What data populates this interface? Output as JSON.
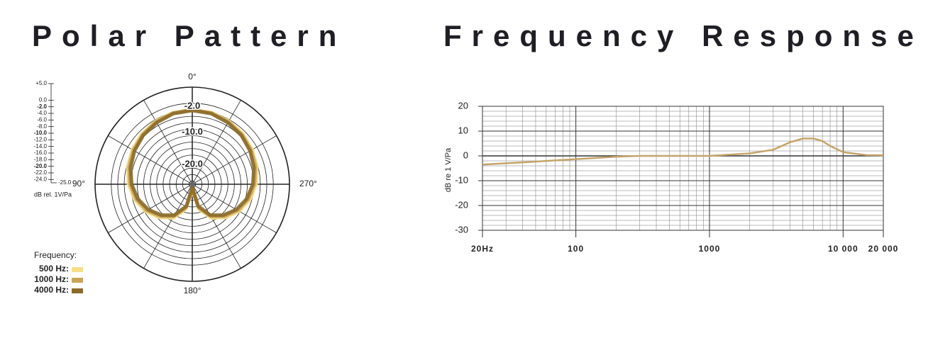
{
  "chart_data": [
    {
      "type": "polar",
      "title": "Polar Pattern",
      "rlim": [
        -25,
        5
      ],
      "rticks": [
        {
          "value": 5,
          "label": "+5.0"
        },
        {
          "value": 0,
          "label": "0.0"
        },
        {
          "value": -2,
          "label": "-2.0"
        },
        {
          "value": -4,
          "label": "-4.0"
        },
        {
          "value": -6,
          "label": "-6.0"
        },
        {
          "value": -8,
          "label": "-8.0"
        },
        {
          "value": -10,
          "label": "-10.0"
        },
        {
          "value": -12,
          "label": "-12.0"
        },
        {
          "value": -14,
          "label": "-14.0"
        },
        {
          "value": -16,
          "label": "-16.0"
        },
        {
          "value": -18,
          "label": "-18.0"
        },
        {
          "value": -20,
          "label": "-20.0"
        },
        {
          "value": -22,
          "label": "-22.0"
        },
        {
          "value": -24,
          "label": "-24.0"
        },
        {
          "value": -25,
          "label": "-25.0"
        }
      ],
      "r_label": "dB rel. 1V/Pa",
      "thetaticks": [
        0,
        30,
        60,
        90,
        120,
        150,
        180,
        210,
        240,
        270,
        300,
        330
      ],
      "angle_labels": [
        {
          "value": 0,
          "label": "0°"
        },
        {
          "value": 90,
          "label": "90°"
        },
        {
          "value": 180,
          "label": "180°"
        },
        {
          "value": 270,
          "label": "270°"
        }
      ],
      "annotations": [
        {
          "r": -2,
          "label": "-2.0"
        },
        {
          "r": -10,
          "label": "-10.0"
        },
        {
          "r": -20,
          "label": "-20.0"
        }
      ],
      "legend_title": "Frequency:",
      "theta": [
        0,
        15,
        30,
        45,
        60,
        75,
        90,
        105,
        120,
        135,
        150,
        165,
        180,
        195,
        210,
        225,
        240,
        255,
        270,
        285,
        300,
        315,
        330,
        345
      ],
      "series": [
        {
          "name": "500 Hz:",
          "color": "#f5df8a",
          "values": [
            -2,
            -2.1,
            -2.5,
            -3,
            -3.6,
            -4.4,
            -5.3,
            -6.6,
            -8.3,
            -10.5,
            -13,
            -17,
            -23,
            -17,
            -13,
            -10.5,
            -8.3,
            -6.6,
            -5.3,
            -4.4,
            -3.6,
            -3,
            -2.5,
            -2.1
          ]
        },
        {
          "name": "1000 Hz:",
          "color": "#c9a45a",
          "values": [
            -2,
            -2.2,
            -2.7,
            -3.3,
            -4,
            -4.8,
            -5.8,
            -7.1,
            -8.8,
            -11,
            -13.5,
            -17.5,
            -23.5,
            -17.5,
            -13.5,
            -11,
            -8.8,
            -7.1,
            -5.8,
            -4.8,
            -4,
            -3.3,
            -2.7,
            -2.2
          ]
        },
        {
          "name": "4000 Hz:",
          "color": "#8a6a2a",
          "values": [
            -2.2,
            -2.4,
            -3,
            -3.6,
            -4.4,
            -5.3,
            -6.3,
            -7.6,
            -9.3,
            -11.5,
            -14,
            -18,
            -24,
            -18,
            -14,
            -11.5,
            -9.3,
            -7.6,
            -6.3,
            -5.3,
            -4.4,
            -3.6,
            -3,
            -2.4
          ]
        }
      ]
    },
    {
      "type": "line",
      "title": "Frequency Response",
      "y_label": "dB re 1 V/Pa",
      "log_x": true,
      "xlim": [
        20,
        20000
      ],
      "ylim": [
        -30,
        20
      ],
      "xticks": [
        {
          "value": 20,
          "label": "20Hz"
        },
        100,
        1000,
        {
          "value": 10000,
          "label": "10 000"
        },
        {
          "value": 20000,
          "label": "20 000"
        }
      ],
      "xminor": [
        30,
        40,
        50,
        60,
        70,
        80,
        90,
        200,
        300,
        400,
        500,
        600,
        700,
        800,
        900,
        2000,
        3000,
        4000,
        5000,
        6000,
        7000,
        8000,
        9000
      ],
      "yticks": [
        20,
        10,
        0,
        -10,
        -20,
        -30
      ],
      "yminor": [
        -28,
        -26,
        -24,
        -22,
        -18,
        -16,
        -14,
        -12,
        -8,
        -6,
        -4,
        -2,
        2,
        4,
        6,
        8,
        12,
        14,
        16,
        18
      ],
      "series": [
        {
          "color": "#c4a46a",
          "x": [
            20,
            50,
            100,
            200,
            300,
            500,
            1000,
            2000,
            3000,
            4000,
            5000,
            6000,
            7000,
            8000,
            10000,
            15000,
            20000
          ],
          "values": [
            -3.5,
            -2.3,
            -1.3,
            -0.3,
            0,
            0,
            0,
            1,
            2.5,
            5.5,
            7,
            7,
            6,
            4,
            1.5,
            0.3,
            0.2
          ]
        }
      ]
    }
  ]
}
